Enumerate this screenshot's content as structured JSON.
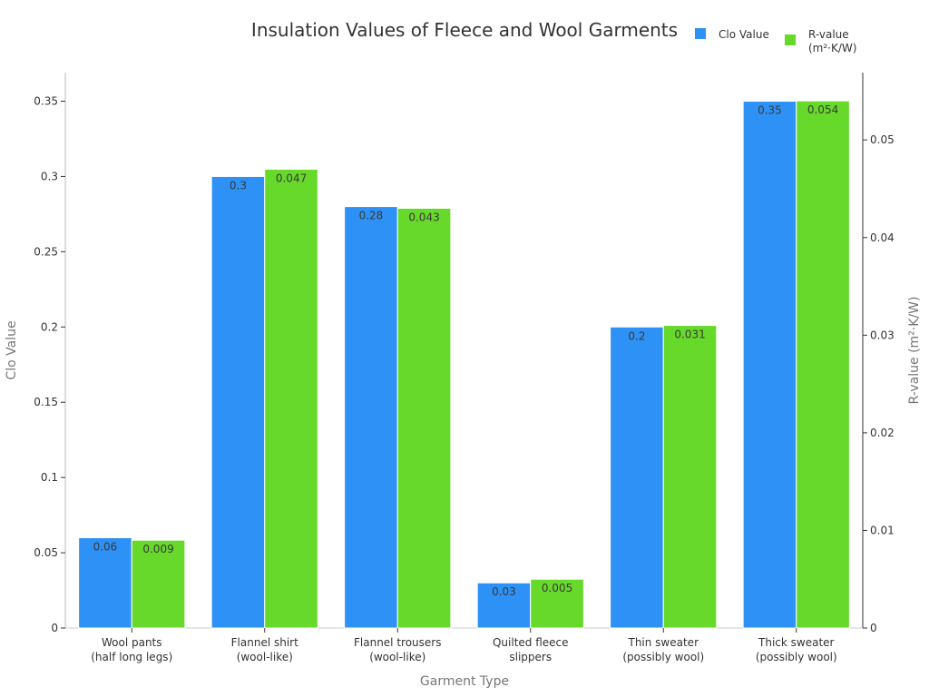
{
  "chart_data": {
    "type": "bar",
    "title": "Insulation Values of Fleece and Wool Garments",
    "xlabel": "Garment Type",
    "ylabel_left": "Clo Value",
    "ylabel_right": "R-value (m²·K/W)",
    "categories": [
      [
        "Wool pants",
        "(half long legs)"
      ],
      [
        "Flannel shirt",
        "(wool-like)"
      ],
      [
        "Flannel trousers",
        "(wool-like)"
      ],
      [
        "Quilted fleece",
        "slippers"
      ],
      [
        "Thin sweater",
        "(possibly wool)"
      ],
      [
        "Thick sweater",
        "(possibly wool)"
      ]
    ],
    "series": [
      {
        "name": "Clo Value",
        "axis": "left",
        "color": "#2e91f5",
        "values": [
          0.06,
          0.3,
          0.28,
          0.03,
          0.2,
          0.35
        ],
        "labels": [
          "0.06",
          "0.3",
          "0.28",
          "0.03",
          "0.2",
          "0.35"
        ]
      },
      {
        "name": "R-value (m²·K/W)",
        "legend_lines": [
          "R-value",
          "(m²·K/W)"
        ],
        "axis": "right",
        "color": "#66d92a",
        "values": [
          0.009,
          0.047,
          0.043,
          0.005,
          0.031,
          0.054
        ],
        "labels": [
          "0.009",
          "0.047",
          "0.043",
          "0.005",
          "0.031",
          "0.054"
        ]
      }
    ],
    "ylim_left": [
      0,
      0.369
    ],
    "ylim_right": [
      0,
      0.0569
    ],
    "yticks_left": [
      "0",
      "0.05",
      "0.1",
      "0.15",
      "0.2",
      "0.25",
      "0.3",
      "0.35"
    ],
    "yticks_right": [
      "0",
      "0.01",
      "0.02",
      "0.03",
      "0.04",
      "0.05"
    ],
    "grid": false,
    "legend_position": "top-right"
  }
}
